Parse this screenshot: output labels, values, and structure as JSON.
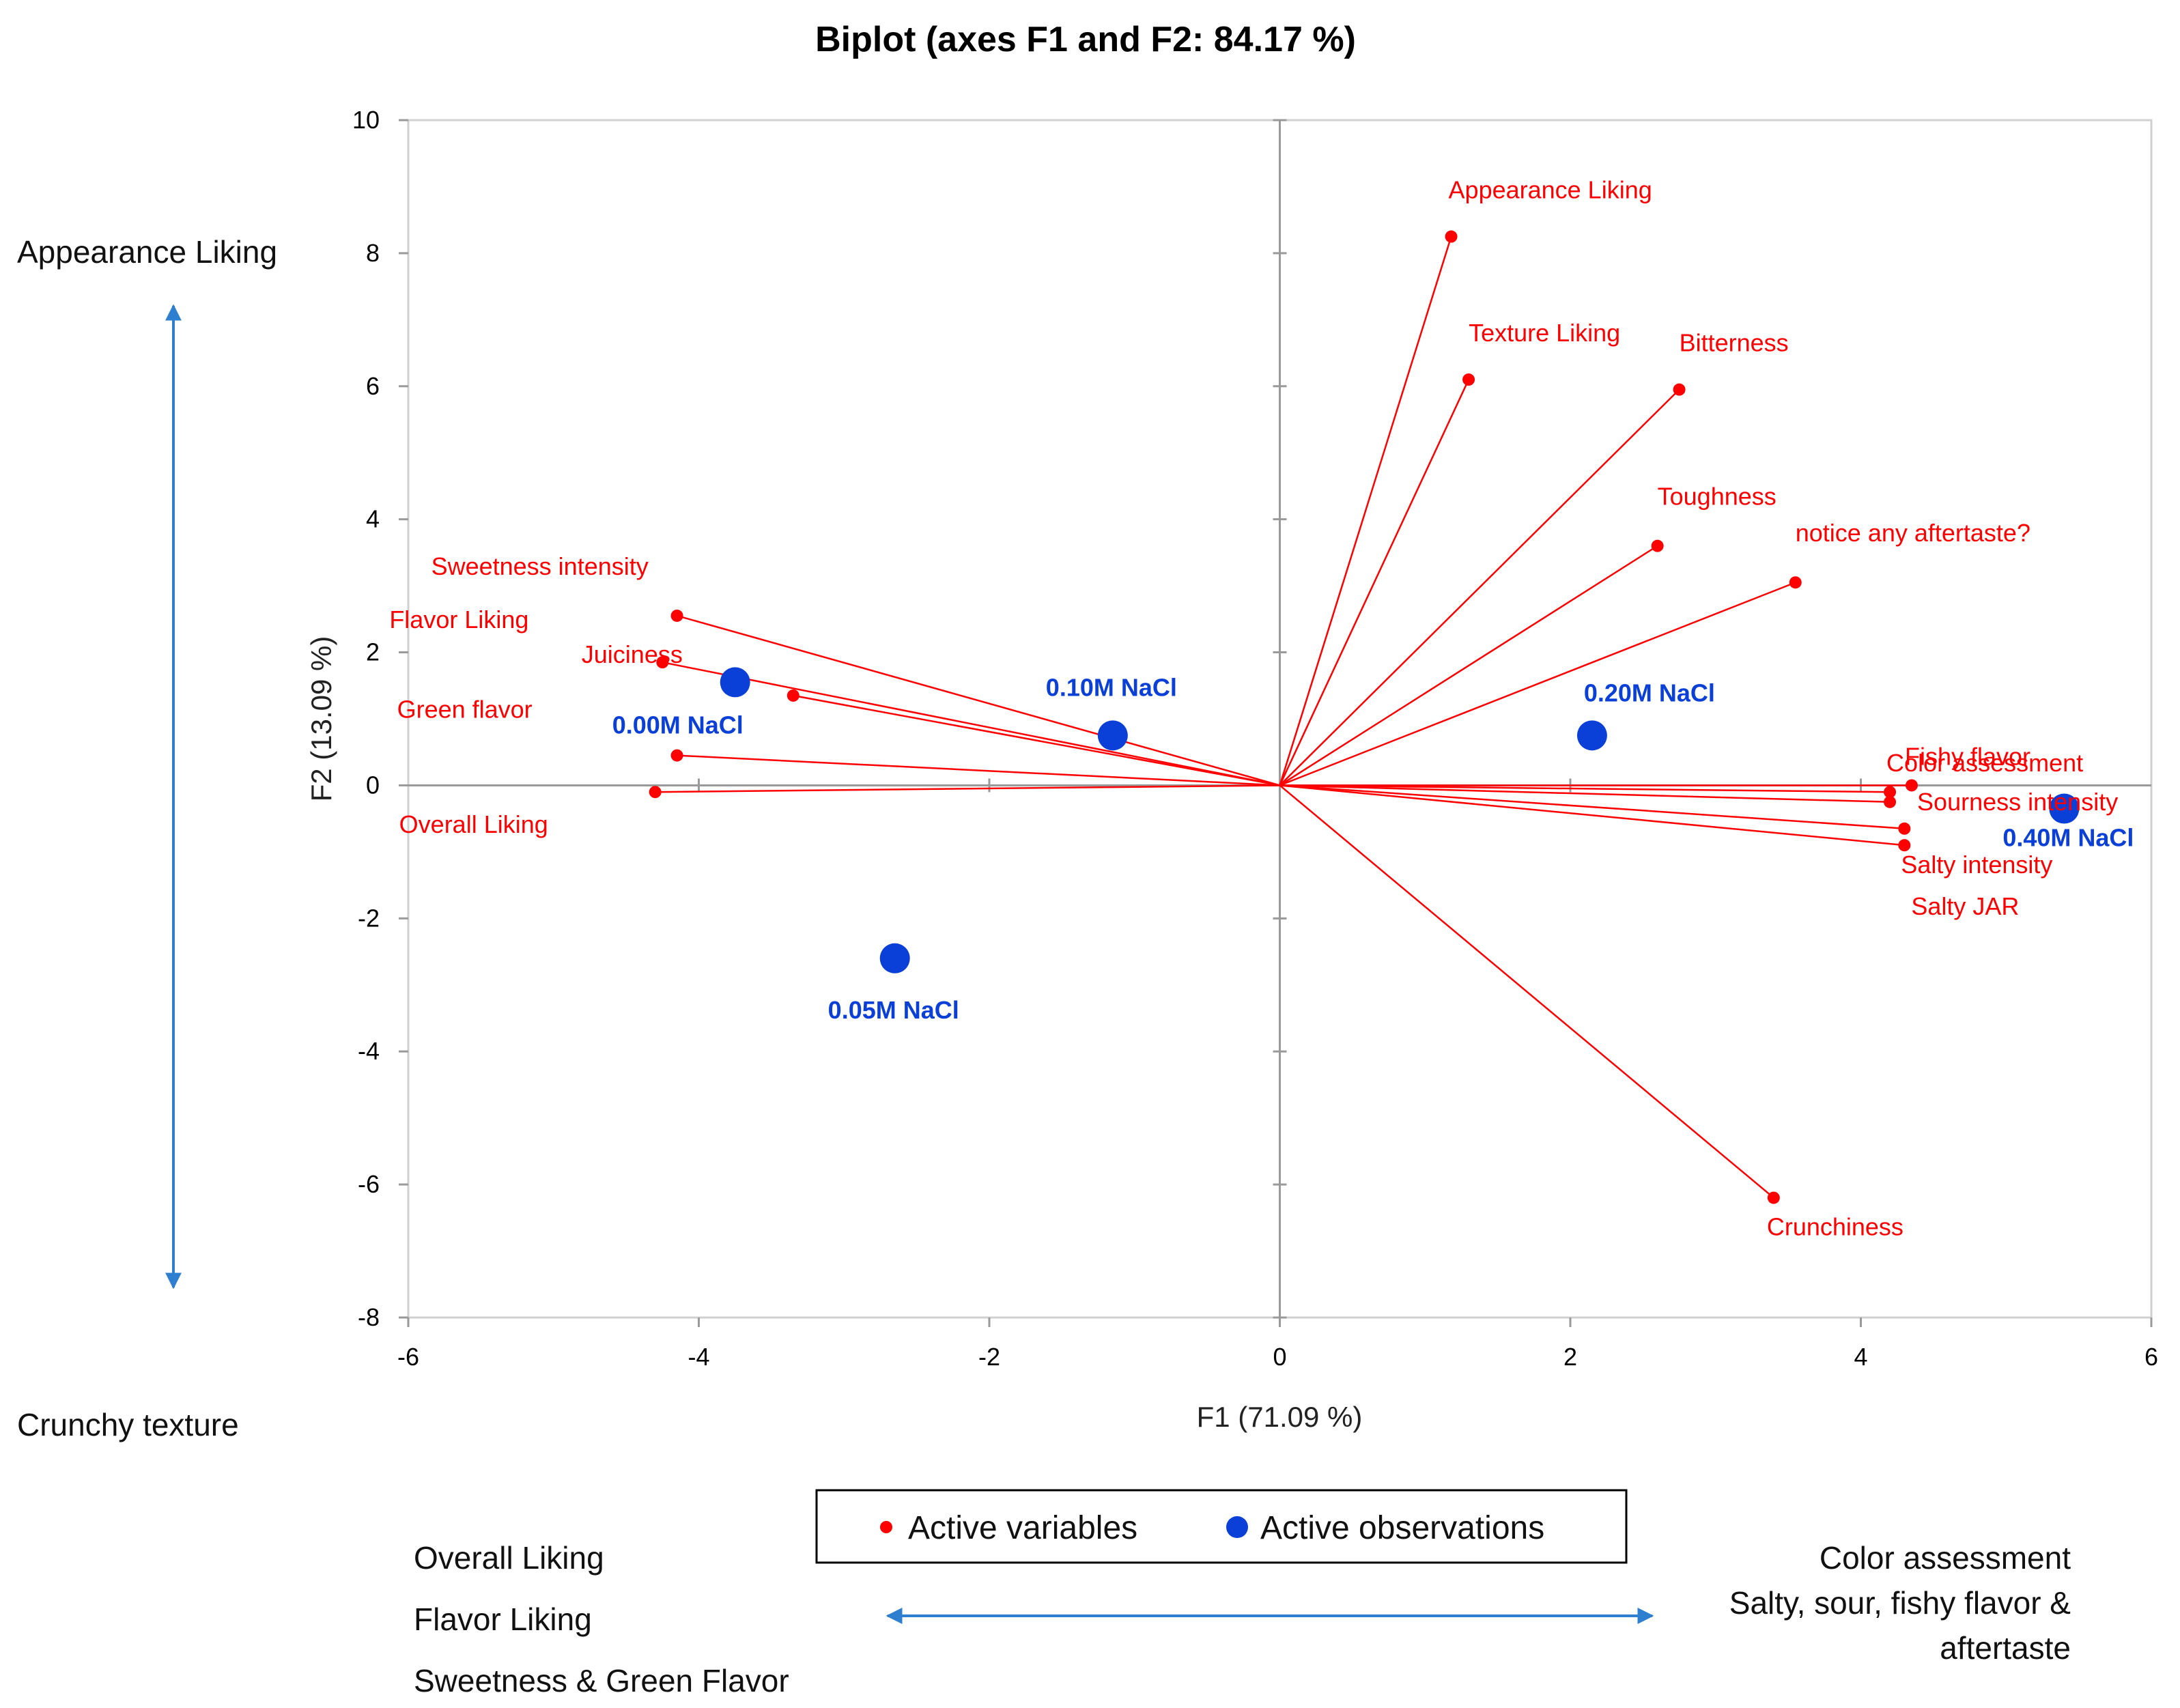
{
  "chart_data": {
    "type": "scatter",
    "title": "Biplot (axes F1 and F2: 84.17 %)",
    "xlabel": "F1 (71.09 %)",
    "ylabel": "F2 (13.09 %)",
    "xlim": [
      -6,
      6
    ],
    "ylim": [
      -8,
      10
    ],
    "x_ticks": [
      "-6",
      "-4",
      "-2",
      "0",
      "2",
      "4",
      "6"
    ],
    "y_ticks": [
      "10",
      "8",
      "6",
      "4",
      "2",
      "0",
      "-2",
      "-4",
      "-6",
      "-8"
    ],
    "colors": {
      "variables": "#ff0000",
      "observations": "#0a3fd8",
      "arrows": "#2f7fd0"
    },
    "variables": [
      {
        "name": "Appearance Liking",
        "x": 1.18,
        "y": 8.25
      },
      {
        "name": "Texture Liking",
        "x": 1.3,
        "y": 6.1
      },
      {
        "name": "Bitterness",
        "x": 2.75,
        "y": 5.95
      },
      {
        "name": "Toughness",
        "x": 2.6,
        "y": 3.6
      },
      {
        "name": "notice any aftertaste?",
        "x": 3.55,
        "y": 3.05
      },
      {
        "name": "Sweetness intensity",
        "x": -4.15,
        "y": 2.55
      },
      {
        "name": "Flavor Liking",
        "x": -4.25,
        "y": 1.85
      },
      {
        "name": "Juiciness",
        "x": -3.35,
        "y": 1.35
      },
      {
        "name": "Green flavor",
        "x": -4.15,
        "y": 0.45
      },
      {
        "name": "Overall Liking",
        "x": -4.3,
        "y": -0.1
      },
      {
        "name": "Fishy flavor",
        "x": 4.35,
        "y": 0.0
      },
      {
        "name": "Color assessment",
        "x": 4.2,
        "y": -0.1
      },
      {
        "name": "Sourness intensity",
        "x": 4.2,
        "y": -0.25
      },
      {
        "name": "Salty intensity",
        "x": 4.3,
        "y": -0.65
      },
      {
        "name": "Salty JAR",
        "x": 4.3,
        "y": -0.9
      },
      {
        "name": "Crunchiness",
        "x": 3.4,
        "y": -6.2
      }
    ],
    "observations": [
      {
        "name": "0.00M NaCl",
        "x": -3.75,
        "y": 1.55
      },
      {
        "name": "0.05M NaCl",
        "x": -2.65,
        "y": -2.6
      },
      {
        "name": "0.10M NaCl",
        "x": -1.15,
        "y": 0.75
      },
      {
        "name": "0.20M NaCl",
        "x": 2.15,
        "y": 0.75
      },
      {
        "name": "0.40M NaCl",
        "x": 5.4,
        "y": -0.35
      }
    ],
    "legend": {
      "variables": "Active variables",
      "observations": "Active observations"
    }
  },
  "annotations": {
    "top_left": "Appearance Liking",
    "bottom_left": "Crunchy texture",
    "bottom_left_list": [
      "Overall  Liking",
      "Flavor  Liking",
      "Sweetness  & Green Flavor"
    ],
    "bottom_right_list": [
      "Color assessment",
      "Salty, sour, fishy flavor &",
      "aftertaste"
    ]
  }
}
